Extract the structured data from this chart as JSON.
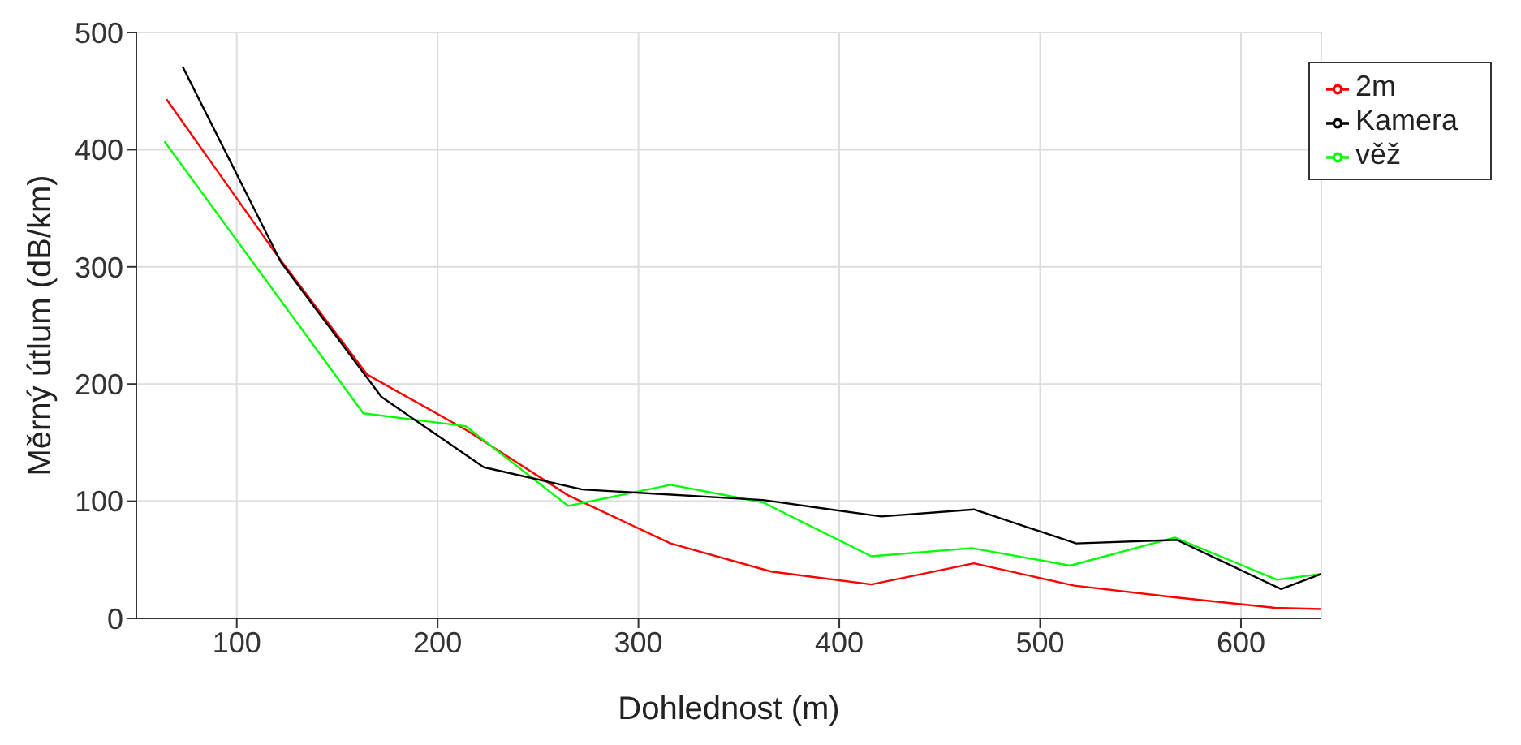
{
  "chart_data": {
    "type": "line",
    "xlabel": "Dohlednost (m)",
    "ylabel": "Měrný útlum (dB/km)",
    "xlim": [
      50,
      640
    ],
    "xticks": [
      100,
      200,
      300,
      400,
      500,
      600
    ],
    "ylim": [
      0,
      500
    ],
    "yticks": [
      0,
      100,
      200,
      300,
      400,
      500
    ],
    "grid": true,
    "legend": "top right",
    "marker": "none",
    "line_style": "solid",
    "series": [
      {
        "name": "2m",
        "color": "#ff0000",
        "x": [
          65,
          120,
          165,
          215,
          265,
          316,
          366,
          416,
          467,
          517,
          567,
          617,
          640
        ],
        "values": [
          443,
          310,
          208,
          160,
          105,
          64,
          40,
          29,
          47,
          28,
          18,
          9,
          8
        ]
      },
      {
        "name": "věž",
        "color": "#00ff00",
        "x": [
          64,
          163,
          214,
          265,
          316,
          362,
          416,
          466,
          515,
          567,
          618,
          640
        ],
        "values": [
          407,
          175,
          164,
          96,
          114,
          99,
          53,
          60,
          45,
          69,
          33,
          38
        ]
      },
      {
        "name": "Kamera",
        "color": "#000000",
        "x": [
          73,
          122,
          172,
          223,
          272,
          362,
          421,
          467,
          518,
          568,
          620,
          640
        ],
        "values": [
          471,
          304,
          189,
          129,
          110,
          101,
          87,
          93,
          64,
          67,
          25,
          38
        ]
      }
    ]
  }
}
